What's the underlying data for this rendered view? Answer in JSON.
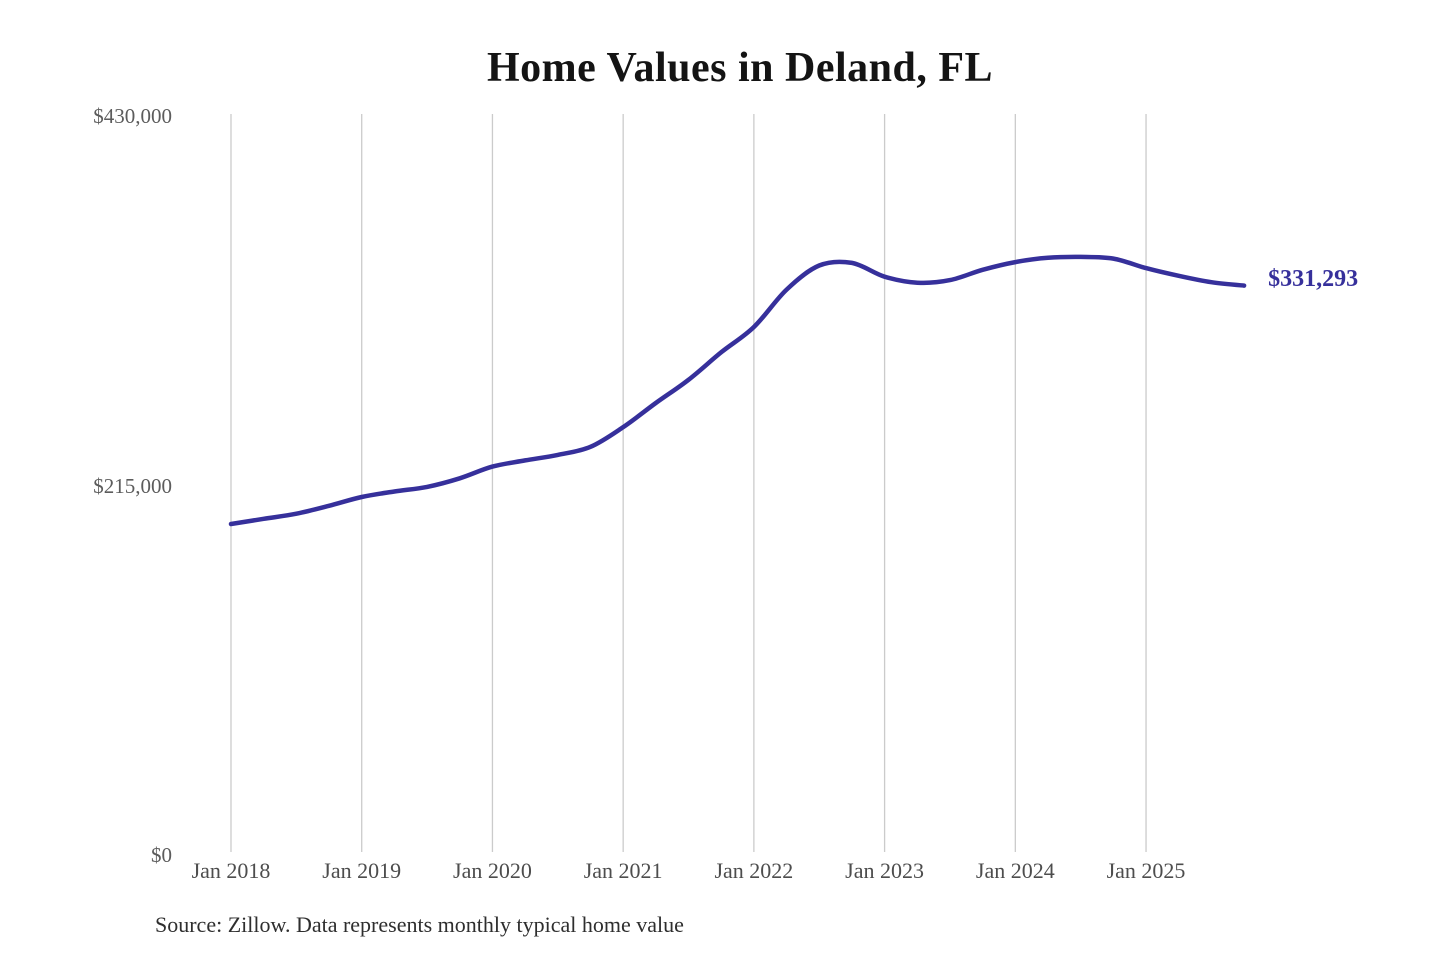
{
  "chart_data": {
    "type": "line",
    "title": "Home Values in Deland, FL",
    "source": "Source: Zillow. Data represents monthly typical home value",
    "end_label": "$331,293",
    "latest_value": 331293,
    "line_color": "#36309b",
    "grid_color": "#cbcbcb",
    "ylim": [
      0,
      430000
    ],
    "y_ticks": [
      {
        "label": "$430,000",
        "value": 430000
      },
      {
        "label": "$215,000",
        "value": 215000
      },
      {
        "label": "$0",
        "value": 0
      }
    ],
    "x_tick_labels": [
      "Jan 2018",
      "Jan 2019",
      "Jan 2020",
      "Jan 2021",
      "Jan 2022",
      "Jan 2023",
      "Jan 2024",
      "Jan 2025"
    ],
    "legend": "none",
    "grid": "vertical-only",
    "series": [
      {
        "name": "Monthly typical home value",
        "points": [
          [
            "2018-01",
            192600
          ],
          [
            "2018-04",
            195600
          ],
          [
            "2018-07",
            198600
          ],
          [
            "2018-10",
            203200
          ],
          [
            "2019-01",
            208300
          ],
          [
            "2019-04",
            211500
          ],
          [
            "2019-07",
            214200
          ],
          [
            "2019-10",
            219200
          ],
          [
            "2020-01",
            226000
          ],
          [
            "2020-04",
            229600
          ],
          [
            "2020-07",
            232800
          ],
          [
            "2020-10",
            237500
          ],
          [
            "2021-01",
            249000
          ],
          [
            "2021-04",
            263000
          ],
          [
            "2021-07",
            276500
          ],
          [
            "2021-10",
            292500
          ],
          [
            "2022-01",
            307200
          ],
          [
            "2022-04",
            329000
          ],
          [
            "2022-07",
            343000
          ],
          [
            "2022-10",
            344500
          ],
          [
            "2023-01",
            336500
          ],
          [
            "2023-04",
            333000
          ],
          [
            "2023-07",
            334500
          ],
          [
            "2023-10",
            340500
          ],
          [
            "2024-01",
            345000
          ],
          [
            "2024-04",
            347500
          ],
          [
            "2024-07",
            348000
          ],
          [
            "2024-10",
            347000
          ],
          [
            "2025-01",
            341500
          ],
          [
            "2025-04",
            337000
          ],
          [
            "2025-07",
            333300
          ],
          [
            "2025-10",
            331293
          ]
        ]
      }
    ]
  }
}
